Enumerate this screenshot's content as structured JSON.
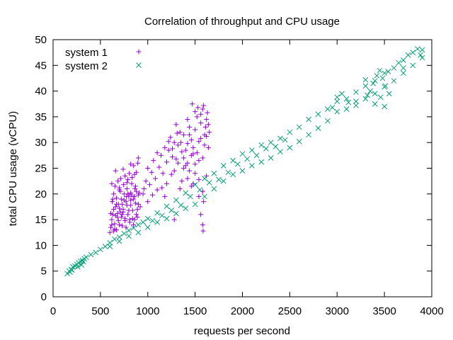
{
  "chart_data": {
    "type": "scatter",
    "title": "Correlation of throughput and CPU usage",
    "xlabel": "requests per second",
    "ylabel": "total CPU usage (vCPU)",
    "xlim": [
      0,
      4000
    ],
    "ylim": [
      0,
      50
    ],
    "xticks": [
      0,
      500,
      1000,
      1500,
      2000,
      2500,
      3000,
      3500,
      4000
    ],
    "yticks": [
      0,
      5,
      10,
      15,
      20,
      25,
      30,
      35,
      40,
      45,
      50
    ],
    "legend_position": "top-left",
    "series": [
      {
        "name": "system 1",
        "marker": "+",
        "color": "#9400d3",
        "points": [
          [
            600,
            12.5
          ],
          [
            610,
            13.5
          ],
          [
            620,
            15.0
          ],
          [
            630,
            16.0
          ],
          [
            640,
            12.8
          ],
          [
            650,
            14.2
          ],
          [
            660,
            17.5
          ],
          [
            670,
            13.0
          ],
          [
            680,
            15.5
          ],
          [
            690,
            18.0
          ],
          [
            700,
            14.0
          ],
          [
            710,
            16.5
          ],
          [
            720,
            19.0
          ],
          [
            730,
            13.8
          ],
          [
            740,
            17.0
          ],
          [
            750,
            20.0
          ],
          [
            760,
            15.2
          ],
          [
            770,
            18.5
          ],
          [
            780,
            21.0
          ],
          [
            790,
            16.0
          ],
          [
            800,
            19.5
          ],
          [
            810,
            14.5
          ],
          [
            820,
            17.8
          ],
          [
            830,
            22.0
          ],
          [
            840,
            16.8
          ],
          [
            850,
            19.0
          ],
          [
            860,
            15.0
          ],
          [
            870,
            18.2
          ],
          [
            880,
            20.5
          ],
          [
            890,
            17.0
          ],
          [
            900,
            19.8
          ],
          [
            610,
            16.2
          ],
          [
            625,
            18.5
          ],
          [
            640,
            20.0
          ],
          [
            655,
            21.5
          ],
          [
            670,
            19.2
          ],
          [
            685,
            22.5
          ],
          [
            700,
            20.8
          ],
          [
            715,
            23.0
          ],
          [
            730,
            18.0
          ],
          [
            745,
            21.8
          ],
          [
            760,
            23.5
          ],
          [
            775,
            19.5
          ],
          [
            790,
            22.8
          ],
          [
            805,
            24.0
          ],
          [
            820,
            20.2
          ],
          [
            835,
            23.2
          ],
          [
            850,
            25.5
          ],
          [
            865,
            21.0
          ],
          [
            880,
            24.2
          ],
          [
            895,
            26.0
          ],
          [
            620,
            14.0
          ],
          [
            660,
            15.8
          ],
          [
            700,
            17.2
          ],
          [
            740,
            16.5
          ],
          [
            780,
            17.8
          ],
          [
            820,
            18.8
          ],
          [
            860,
            19.5
          ],
          [
            900,
            18.0
          ],
          [
            640,
            17.0
          ],
          [
            680,
            16.2
          ],
          [
            720,
            15.5
          ],
          [
            760,
            14.8
          ],
          [
            800,
            16.8
          ],
          [
            840,
            15.2
          ],
          [
            880,
            16.0
          ],
          [
            920,
            17.5
          ],
          [
            630,
            19.0
          ],
          [
            670,
            18.0
          ],
          [
            710,
            20.5
          ],
          [
            750,
            18.8
          ],
          [
            790,
            20.0
          ],
          [
            830,
            19.8
          ],
          [
            870,
            21.5
          ],
          [
            910,
            20.2
          ],
          [
            650,
            13.2
          ],
          [
            690,
            14.8
          ],
          [
            730,
            16.0
          ],
          [
            770,
            13.5
          ],
          [
            810,
            15.0
          ],
          [
            850,
            14.0
          ],
          [
            890,
            15.5
          ],
          [
            620,
            22.0
          ],
          [
            660,
            24.5
          ],
          [
            700,
            21.2
          ],
          [
            740,
            24.8
          ],
          [
            780,
            22.2
          ],
          [
            820,
            25.8
          ],
          [
            860,
            23.8
          ],
          [
            900,
            27.0
          ],
          [
            950,
            20.0
          ],
          [
            980,
            22.5
          ],
          [
            1000,
            25.0
          ],
          [
            1020,
            21.8
          ],
          [
            1040,
            24.2
          ],
          [
            1060,
            26.5
          ],
          [
            1080,
            23.0
          ],
          [
            1100,
            28.0
          ],
          [
            1120,
            25.2
          ],
          [
            1140,
            27.5
          ],
          [
            1160,
            24.0
          ],
          [
            1180,
            29.0
          ],
          [
            1200,
            26.2
          ],
          [
            1220,
            28.5
          ],
          [
            1240,
            31.0
          ],
          [
            1260,
            27.2
          ],
          [
            1280,
            30.0
          ],
          [
            1300,
            26.8
          ],
          [
            1320,
            29.5
          ],
          [
            1340,
            32.0
          ],
          [
            1360,
            28.2
          ],
          [
            1380,
            31.5
          ],
          [
            1400,
            25.5
          ],
          [
            1420,
            29.8
          ],
          [
            1440,
            33.0
          ],
          [
            1460,
            30.5
          ],
          [
            1480,
            27.8
          ],
          [
            1500,
            32.5
          ],
          [
            1520,
            35.0
          ],
          [
            1540,
            30.2
          ],
          [
            1560,
            33.8
          ],
          [
            1580,
            36.5
          ],
          [
            1600,
            31.5
          ],
          [
            1620,
            34.5
          ],
          [
            1640,
            29.0
          ],
          [
            1650,
            32.0
          ],
          [
            1470,
            37.5
          ],
          [
            1500,
            36.0
          ],
          [
            1530,
            36.8
          ],
          [
            1560,
            35.5
          ],
          [
            1590,
            37.2
          ],
          [
            1610,
            33.0
          ],
          [
            1630,
            35.8
          ],
          [
            1400,
            28.5
          ],
          [
            1420,
            26.0
          ],
          [
            1440,
            24.5
          ],
          [
            1460,
            27.5
          ],
          [
            1480,
            29.0
          ],
          [
            1500,
            25.8
          ],
          [
            1520,
            28.0
          ],
          [
            1540,
            26.5
          ],
          [
            1560,
            30.8
          ],
          [
            1580,
            27.0
          ],
          [
            1600,
            29.5
          ],
          [
            1620,
            31.2
          ],
          [
            1640,
            33.5
          ],
          [
            1360,
            22.5
          ],
          [
            1380,
            25.0
          ],
          [
            1420,
            23.0
          ],
          [
            1460,
            21.5
          ],
          [
            1500,
            24.0
          ],
          [
            1540,
            22.8
          ],
          [
            1580,
            20.5
          ],
          [
            1620,
            23.5
          ],
          [
            1340,
            21.0
          ],
          [
            1250,
            23.8
          ],
          [
            1200,
            22.0
          ],
          [
            1150,
            21.2
          ],
          [
            1100,
            20.8
          ],
          [
            1050,
            19.8
          ],
          [
            1000,
            18.5
          ],
          [
            960,
            21.0
          ],
          [
            1180,
            19.5
          ],
          [
            1280,
            24.5
          ],
          [
            1320,
            26.0
          ],
          [
            1260,
            28.8
          ],
          [
            1220,
            30.2
          ],
          [
            1300,
            33.5
          ],
          [
            1420,
            34.5
          ],
          [
            1440,
            31.5
          ],
          [
            1280,
            15.0
          ],
          [
            1580,
            14.0
          ],
          [
            1585,
            12.8
          ],
          [
            1590,
            18.5
          ],
          [
            1560,
            16.0
          ],
          [
            1540,
            19.5
          ],
          [
            1480,
            22.0
          ],
          [
            1380,
            27.0
          ],
          [
            1350,
            30.0
          ],
          [
            1310,
            31.8
          ]
        ]
      },
      {
        "name": "system 2",
        "marker": "x",
        "color": "#009e73",
        "points": [
          [
            150,
            4.5
          ],
          [
            170,
            5.0
          ],
          [
            190,
            5.3
          ],
          [
            210,
            5.8
          ],
          [
            230,
            6.0
          ],
          [
            250,
            6.3
          ],
          [
            270,
            6.6
          ],
          [
            290,
            6.9
          ],
          [
            310,
            7.1
          ],
          [
            330,
            7.4
          ],
          [
            350,
            7.7
          ],
          [
            400,
            8.2
          ],
          [
            450,
            8.6
          ],
          [
            500,
            9.2
          ],
          [
            550,
            9.8
          ],
          [
            600,
            10.5
          ],
          [
            650,
            11.2
          ],
          [
            700,
            11.6
          ],
          [
            750,
            12.3
          ],
          [
            800,
            12.9
          ],
          [
            850,
            13.4
          ],
          [
            900,
            14.0
          ],
          [
            950,
            14.5
          ],
          [
            1000,
            15.2
          ],
          [
            1100,
            16.3
          ],
          [
            1200,
            17.6
          ],
          [
            1300,
            18.8
          ],
          [
            1400,
            20.2
          ],
          [
            1500,
            21.8
          ],
          [
            1600,
            23.0
          ],
          [
            1700,
            24.0
          ],
          [
            1800,
            25.5
          ],
          [
            1900,
            26.5
          ],
          [
            2000,
            27.8
          ],
          [
            2100,
            28.5
          ],
          [
            2200,
            29.5
          ],
          [
            2300,
            30.0
          ],
          [
            2400,
            30.8
          ],
          [
            2500,
            32.0
          ],
          [
            2600,
            33.0
          ],
          [
            2700,
            34.5
          ],
          [
            2800,
            35.5
          ],
          [
            2900,
            36.5
          ],
          [
            3000,
            38.0
          ],
          [
            3100,
            38.5
          ],
          [
            3200,
            39.8
          ],
          [
            3300,
            41.0
          ],
          [
            3400,
            42.0
          ],
          [
            3500,
            43.5
          ],
          [
            3600,
            44.5
          ],
          [
            3700,
            46.0
          ],
          [
            3800,
            47.5
          ],
          [
            3900,
            48.0
          ],
          [
            600,
            9.8
          ],
          [
            700,
            10.8
          ],
          [
            800,
            11.8
          ],
          [
            900,
            12.5
          ],
          [
            1000,
            13.5
          ],
          [
            1100,
            14.5
          ],
          [
            1200,
            15.2
          ],
          [
            1300,
            16.2
          ],
          [
            1400,
            17.2
          ],
          [
            1500,
            18.0
          ],
          [
            1600,
            19.5
          ],
          [
            1700,
            21.0
          ],
          [
            1800,
            22.5
          ],
          [
            1900,
            23.8
          ],
          [
            2000,
            24.5
          ],
          [
            2100,
            25.5
          ],
          [
            2200,
            26.2
          ],
          [
            2300,
            27.0
          ],
          [
            2400,
            28.2
          ],
          [
            2500,
            29.0
          ],
          [
            2600,
            30.2
          ],
          [
            2700,
            31.5
          ],
          [
            2800,
            32.8
          ],
          [
            2900,
            34.2
          ],
          [
            3000,
            36.0
          ],
          [
            3100,
            36.5
          ],
          [
            3200,
            37.2
          ],
          [
            3300,
            38.5
          ],
          [
            3400,
            39.5
          ],
          [
            3500,
            40.8
          ],
          [
            3600,
            42.0
          ],
          [
            3700,
            43.5
          ],
          [
            3800,
            45.0
          ],
          [
            3900,
            46.5
          ],
          [
            3350,
            40.0
          ],
          [
            3380,
            41.5
          ],
          [
            3420,
            43.0
          ],
          [
            3450,
            44.0
          ],
          [
            3480,
            42.5
          ],
          [
            3510,
            41.0
          ],
          [
            3540,
            43.8
          ],
          [
            3320,
            39.2
          ],
          [
            3400,
            37.5
          ],
          [
            3460,
            38.8
          ],
          [
            3500,
            37.0
          ],
          [
            3550,
            39.5
          ],
          [
            3300,
            42.2
          ],
          [
            3050,
            39.5
          ],
          [
            3000,
            38.8
          ],
          [
            2950,
            36.8
          ],
          [
            3120,
            37.8
          ],
          [
            3200,
            38.0
          ],
          [
            3650,
            45.5
          ],
          [
            3750,
            47.0
          ],
          [
            3850,
            48.2
          ],
          [
            3880,
            47.0
          ],
          [
            3700,
            44.5
          ],
          [
            2050,
            26.8
          ],
          [
            2150,
            27.5
          ],
          [
            2250,
            28.8
          ],
          [
            2350,
            29.2
          ],
          [
            2450,
            30.5
          ],
          [
            1950,
            25.8
          ],
          [
            1850,
            24.2
          ],
          [
            1750,
            22.8
          ],
          [
            1650,
            22.2
          ],
          [
            1550,
            20.8
          ],
          [
            1450,
            19.5
          ],
          [
            1350,
            17.8
          ],
          [
            1250,
            16.8
          ],
          [
            1150,
            15.8
          ],
          [
            1050,
            14.8
          ],
          [
            300,
            6.2
          ],
          [
            320,
            6.8
          ],
          [
            260,
            5.8
          ],
          [
            200,
            5.2
          ],
          [
            180,
            4.8
          ]
        ]
      }
    ]
  }
}
